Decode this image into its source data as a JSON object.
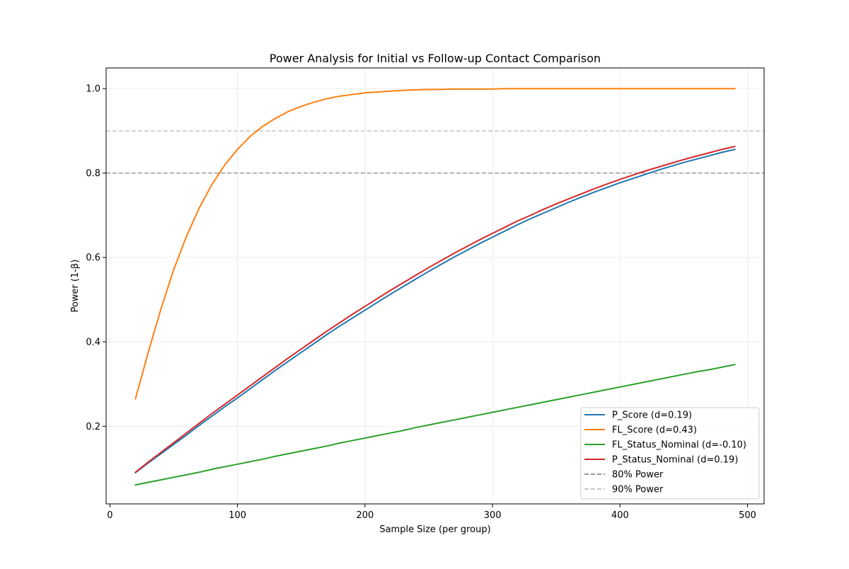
{
  "chart_data": {
    "type": "line",
    "title": "Power Analysis for Initial vs Follow-up Contact Comparison",
    "xlabel": "Sample Size (per group)",
    "ylabel": "Power (1-β)",
    "xlim": [
      -3,
      513
    ],
    "ylim": [
      0.016,
      1.049
    ],
    "x_ticks": [
      0,
      100,
      200,
      300,
      400,
      500
    ],
    "y_ticks": [
      0.2,
      0.4,
      0.6,
      0.8,
      1.0
    ],
    "y_tick_labels": [
      "0.2",
      "0.4",
      "0.6",
      "0.8",
      "1.0"
    ],
    "grid": true,
    "legend_position": "lower-right",
    "x": [
      20,
      30,
      40,
      50,
      60,
      70,
      80,
      90,
      100,
      110,
      120,
      130,
      140,
      150,
      160,
      170,
      180,
      190,
      200,
      210,
      220,
      230,
      240,
      250,
      260,
      270,
      280,
      290,
      300,
      310,
      320,
      330,
      340,
      350,
      360,
      370,
      380,
      390,
      400,
      410,
      420,
      430,
      440,
      450,
      460,
      470,
      480,
      490
    ],
    "series": [
      {
        "name": "P_Score (d=0.19)",
        "color": "#1f77b4",
        "dash": "solid",
        "values": [
          0.09,
          0.113,
          0.135,
          0.157,
          0.179,
          0.202,
          0.224,
          0.246,
          0.267,
          0.289,
          0.311,
          0.333,
          0.354,
          0.375,
          0.396,
          0.417,
          0.437,
          0.456,
          0.475,
          0.494,
          0.513,
          0.531,
          0.549,
          0.567,
          0.584,
          0.601,
          0.617,
          0.633,
          0.648,
          0.663,
          0.678,
          0.692,
          0.705,
          0.718,
          0.731,
          0.743,
          0.755,
          0.766,
          0.777,
          0.787,
          0.797,
          0.807,
          0.816,
          0.825,
          0.833,
          0.841,
          0.849,
          0.856
        ]
      },
      {
        "name": "FL_Score (d=0.43)",
        "color": "#ff7f0e",
        "dash": "solid",
        "values": [
          0.265,
          0.375,
          0.478,
          0.571,
          0.65,
          0.717,
          0.773,
          0.819,
          0.856,
          0.887,
          0.911,
          0.93,
          0.946,
          0.958,
          0.968,
          0.976,
          0.982,
          0.986,
          0.99,
          0.992,
          0.994,
          0.996,
          0.997,
          0.998,
          0.998,
          0.999,
          0.999,
          0.999,
          0.999,
          1.0,
          1.0,
          1.0,
          1.0,
          1.0,
          1.0,
          1.0,
          1.0,
          1.0,
          1.0,
          1.0,
          1.0,
          1.0,
          1.0,
          1.0,
          1.0,
          1.0,
          1.0,
          1.0
        ]
      },
      {
        "name": "FL_Status_Nominal (d=-0.10)",
        "color": "#2ca02c",
        "dash": "solid",
        "values": [
          0.061,
          0.067,
          0.073,
          0.079,
          0.085,
          0.091,
          0.098,
          0.104,
          0.11,
          0.116,
          0.122,
          0.129,
          0.135,
          0.141,
          0.147,
          0.153,
          0.16,
          0.166,
          0.172,
          0.178,
          0.184,
          0.19,
          0.197,
          0.203,
          0.209,
          0.215,
          0.221,
          0.227,
          0.233,
          0.239,
          0.245,
          0.251,
          0.257,
          0.263,
          0.269,
          0.275,
          0.281,
          0.287,
          0.293,
          0.299,
          0.305,
          0.311,
          0.317,
          0.323,
          0.329,
          0.334,
          0.34,
          0.346
        ]
      },
      {
        "name": "P_Status_Nominal (d=0.19)",
        "color": "#d62728",
        "dash": "solid",
        "values": [
          0.091,
          0.115,
          0.138,
          0.161,
          0.184,
          0.207,
          0.23,
          0.252,
          0.274,
          0.296,
          0.318,
          0.34,
          0.362,
          0.383,
          0.404,
          0.425,
          0.445,
          0.465,
          0.484,
          0.503,
          0.522,
          0.54,
          0.558,
          0.576,
          0.593,
          0.61,
          0.626,
          0.642,
          0.657,
          0.672,
          0.687,
          0.7,
          0.714,
          0.727,
          0.739,
          0.751,
          0.763,
          0.774,
          0.785,
          0.795,
          0.805,
          0.814,
          0.823,
          0.832,
          0.84,
          0.848,
          0.856,
          0.863
        ]
      }
    ],
    "reference_lines": [
      {
        "name": "80% Power",
        "y": 0.8,
        "color": "#999999",
        "dash": "dashed"
      },
      {
        "name": "90% Power",
        "y": 0.9,
        "color": "#c8c8c8",
        "dash": "dashed"
      }
    ]
  }
}
